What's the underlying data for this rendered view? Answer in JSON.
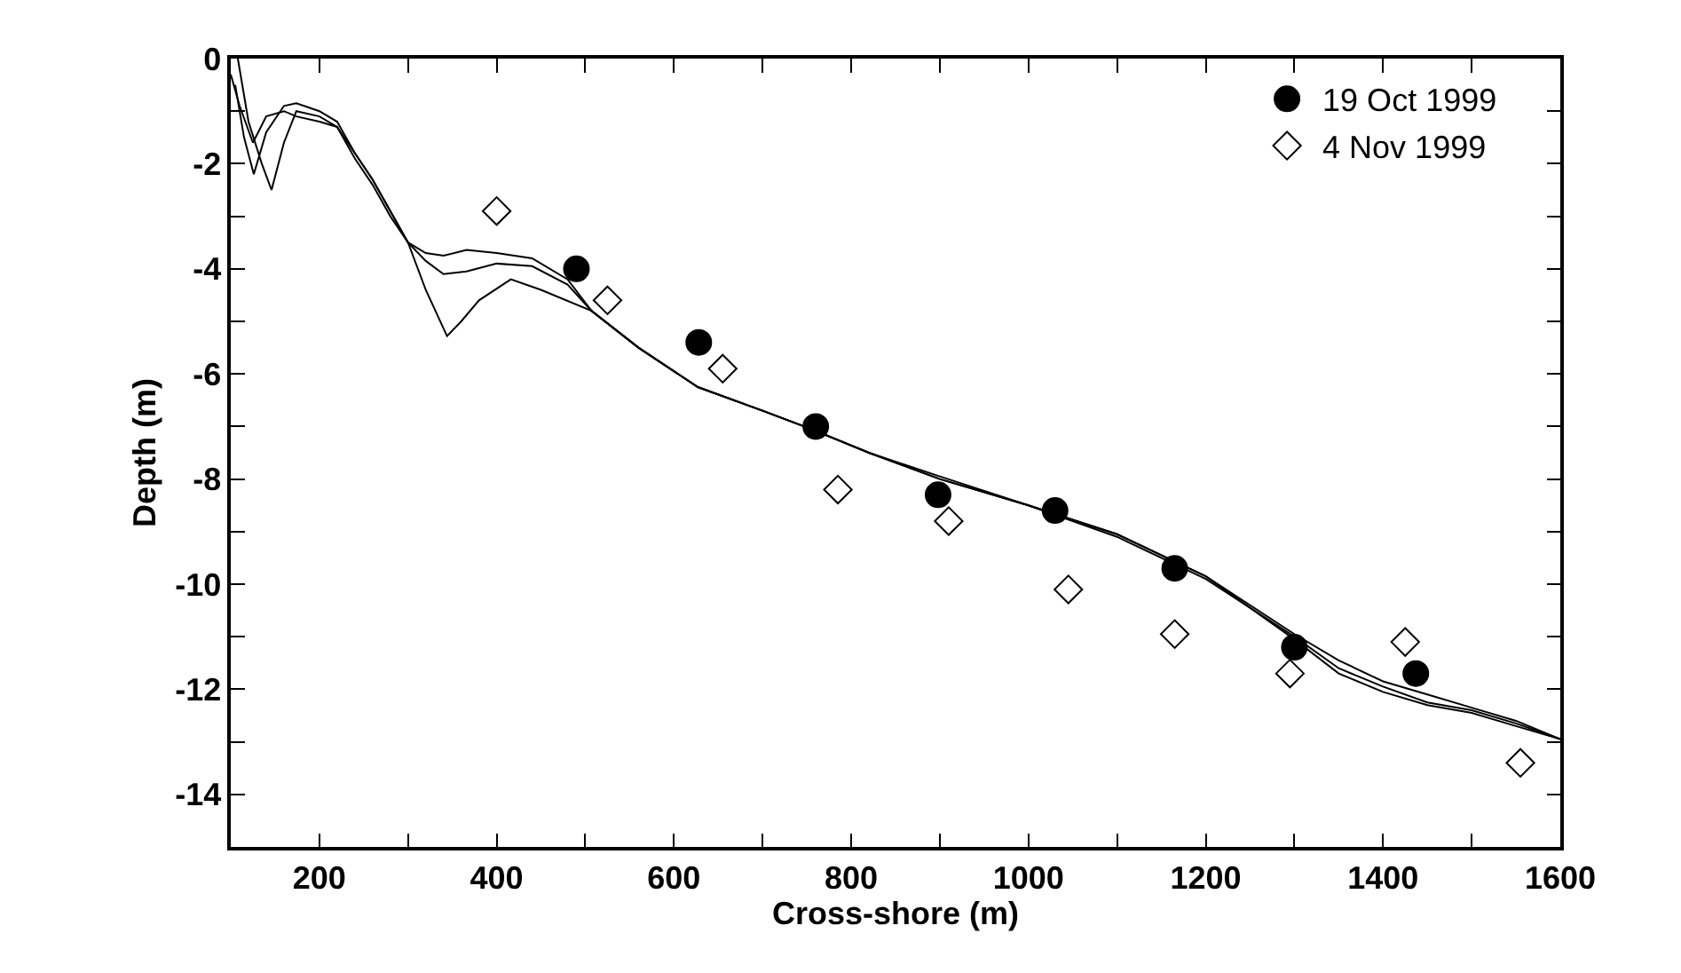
{
  "chart_data": {
    "type": "scatter",
    "xlabel": "Cross-shore (m)",
    "ylabel": "Depth (m)",
    "xlim": [
      100,
      1600
    ],
    "ylim": [
      -15,
      0
    ],
    "xticks": [
      {
        "value": 100,
        "label": null
      },
      200,
      {
        "value": 300,
        "label": null
      },
      400,
      {
        "value": 500,
        "label": null
      },
      600,
      {
        "value": 700,
        "label": null
      },
      800,
      {
        "value": 900,
        "label": null
      },
      1000,
      {
        "value": 1100,
        "label": null
      },
      1200,
      {
        "value": 1300,
        "label": null
      },
      1400,
      {
        "value": 1500,
        "label": null
      },
      1600
    ],
    "yticks": [
      {
        "value": -15,
        "label": null
      },
      -14,
      {
        "value": -13,
        "label": null
      },
      -12,
      {
        "value": -11,
        "label": null
      },
      -10,
      {
        "value": -9,
        "label": null
      },
      -8,
      {
        "value": -7,
        "label": null
      },
      -6,
      {
        "value": -5,
        "label": null
      },
      -4,
      {
        "value": -3,
        "label": null
      },
      -2,
      {
        "value": -1,
        "label": null
      },
      0
    ],
    "legend": "top right",
    "series": [
      {
        "type": "line",
        "color": "#000000",
        "x": [
          108,
          120,
          135,
          146,
          160,
          174,
          200,
          220,
          240,
          260,
          280,
          300,
          320,
          344,
          360,
          380,
          416,
          450,
          507,
          560,
          627,
          700,
          755,
          820,
          900,
          1000,
          1100,
          1200,
          1300,
          1350,
          1400,
          1450,
          1500,
          1550,
          1600
        ],
        "values": [
          0,
          -1.2,
          -2.0,
          -2.5,
          -1.6,
          -1.0,
          -1.1,
          -1.3,
          -1.8,
          -2.3,
          -2.9,
          -3.5,
          -4.4,
          -5.28,
          -5.0,
          -4.6,
          -4.2,
          -4.4,
          -4.8,
          -5.5,
          -6.25,
          -6.7,
          -7.05,
          -7.5,
          -7.95,
          -8.5,
          -9.05,
          -9.85,
          -10.95,
          -11.45,
          -11.85,
          -12.1,
          -12.35,
          -12.6,
          -12.95
        ]
      },
      {
        "type": "line",
        "color": "#000000",
        "x": [
          105,
          115,
          126,
          140,
          160,
          174,
          200,
          220,
          240,
          260,
          280,
          300,
          320,
          340,
          366,
          400,
          440,
          480,
          507,
          560,
          627,
          700,
          755,
          820,
          900,
          1000,
          1100,
          1200,
          1300,
          1350,
          1400,
          1450,
          1500,
          1550,
          1600
        ],
        "values": [
          -0.5,
          -1.5,
          -2.2,
          -1.4,
          -0.9,
          -0.85,
          -1.0,
          -1.2,
          -1.8,
          -2.3,
          -2.9,
          -3.5,
          -3.85,
          -4.1,
          -4.05,
          -3.9,
          -3.95,
          -4.3,
          -4.8,
          -5.5,
          -6.25,
          -6.7,
          -7.05,
          -7.5,
          -8.0,
          -8.5,
          -9.1,
          -9.9,
          -11.0,
          -11.6,
          -11.95,
          -12.25,
          -12.4,
          -12.65,
          -12.95
        ]
      },
      {
        "type": "line",
        "color": "#000000",
        "x": [
          100,
          110,
          125,
          140,
          160,
          174,
          200,
          220,
          240,
          260,
          280,
          300,
          320,
          340,
          366,
          400,
          440,
          480,
          507,
          560,
          627,
          700,
          755,
          820,
          900,
          1000,
          1100,
          1200,
          1300,
          1350,
          1400,
          1450,
          1500,
          1550,
          1600
        ],
        "values": [
          -0.3,
          -0.9,
          -1.6,
          -1.1,
          -1.0,
          -1.1,
          -1.2,
          -1.3,
          -1.9,
          -2.4,
          -3.0,
          -3.5,
          -3.7,
          -3.75,
          -3.64,
          -3.7,
          -3.8,
          -4.2,
          -4.8,
          -5.5,
          -6.25,
          -6.7,
          -7.05,
          -7.5,
          -8.0,
          -8.5,
          -9.05,
          -9.85,
          -11.05,
          -11.7,
          -12.05,
          -12.3,
          -12.45,
          -12.7,
          -12.95
        ]
      },
      {
        "name": "19 Oct 1999",
        "color": "#000000",
        "marker": "circle",
        "x": [
          490,
          628,
          760,
          898,
          1030,
          1165,
          1300,
          1437
        ],
        "values": [
          -4.0,
          -5.4,
          -7.0,
          -8.3,
          -8.6,
          -9.7,
          -11.2,
          -11.7
        ]
      },
      {
        "name": "4 Nov 1999",
        "color": "#000000",
        "marker": "diamond-open",
        "x": [
          400,
          525,
          655,
          785,
          910,
          1045,
          1165,
          1295,
          1425,
          1555
        ],
        "values": [
          -2.9,
          -4.6,
          -5.9,
          -8.2,
          -8.8,
          -10.1,
          -10.95,
          -11.7,
          -11.1,
          -13.4
        ]
      }
    ]
  }
}
